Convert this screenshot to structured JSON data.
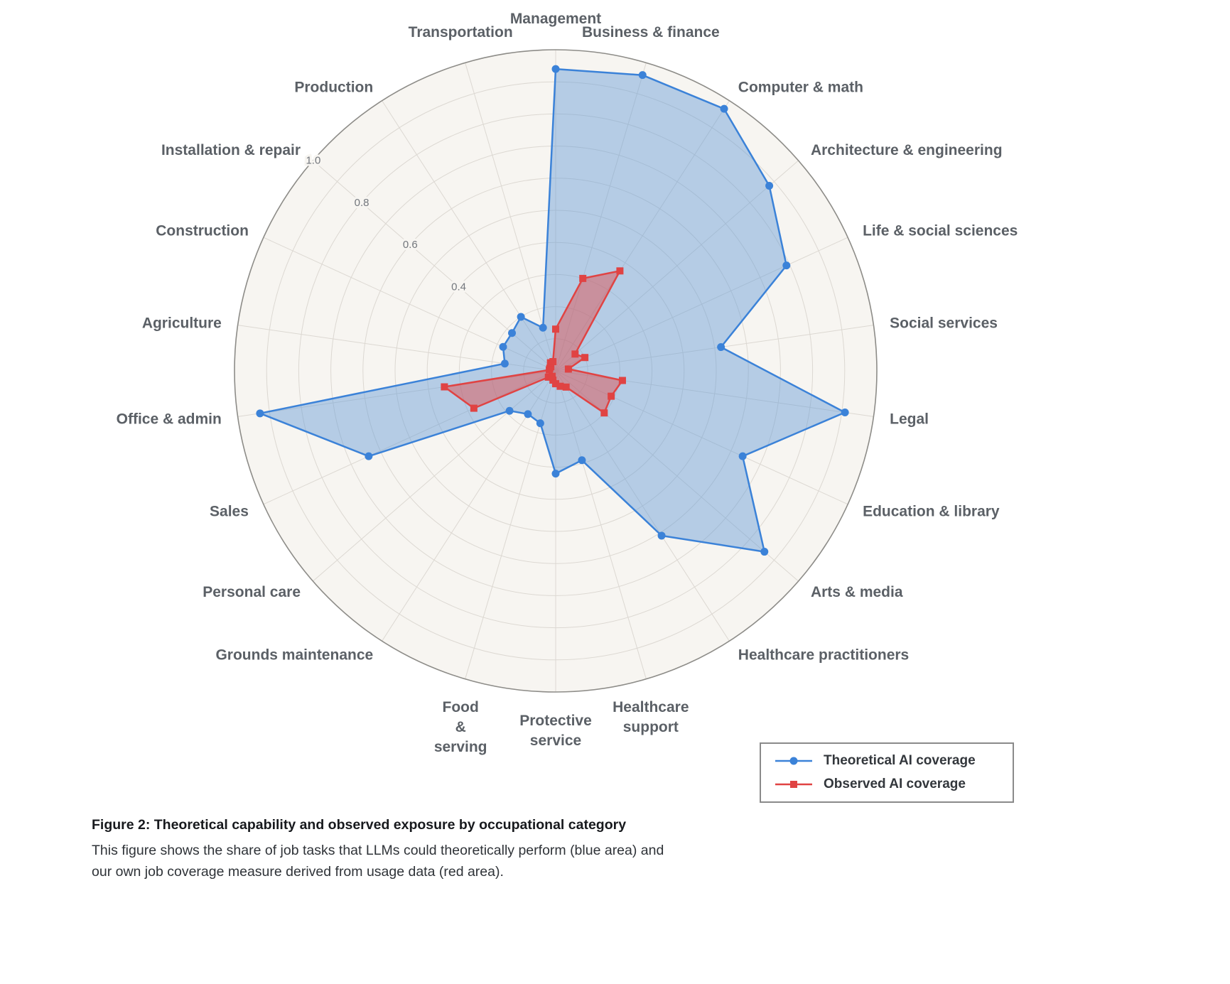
{
  "figure": {
    "caption_title": "Figure 2: Theoretical capability and observed exposure by occupational category",
    "caption_body": "This figure shows the share of job tasks that LLMs could theoretically perform (blue area) and our own job coverage measure derived from usage data (red area)."
  },
  "legend": {
    "items": [
      {
        "label": "Theoretical AI coverage",
        "color": "#3b82d8",
        "marker": "circle"
      },
      {
        "label": "Observed AI coverage",
        "color": "#e04343",
        "marker": "square"
      }
    ]
  },
  "chart_data": {
    "type": "radar",
    "title": "",
    "categories": [
      "Management",
      "Business & finance",
      "Computer & math",
      "Architecture & engineering",
      "Life & social sciences",
      "Social services",
      "Legal",
      "Education & library",
      "Arts & media",
      "Healthcare practitioners",
      "Healthcare support",
      "Protective service",
      "Food & serving",
      "Grounds maintenance",
      "Personal care",
      "Sales",
      "Office & admin",
      "Agriculture",
      "Construction",
      "Installation & repair",
      "Production",
      "Transportation"
    ],
    "series": [
      {
        "name": "Theoretical AI coverage",
        "color": "#3b82d8",
        "fill": "rgba(100,155,215,0.45)",
        "marker": "circle",
        "values": [
          0.94,
          0.96,
          0.97,
          0.88,
          0.79,
          0.52,
          0.91,
          0.64,
          0.86,
          0.61,
          0.29,
          0.32,
          0.17,
          0.16,
          0.19,
          0.64,
          0.93,
          0.16,
          0.18,
          0.18,
          0.2,
          0.14
        ]
      },
      {
        "name": "Observed AI coverage",
        "color": "#e04343",
        "fill": "rgba(224,80,80,0.48)",
        "marker": "square",
        "values": [
          0.13,
          0.3,
          0.37,
          0.08,
          0.1,
          0.04,
          0.21,
          0.19,
          0.2,
          0.06,
          0.05,
          0.04,
          0.03,
          0.02,
          0.03,
          0.28,
          0.35,
          0.02,
          0.02,
          0.02,
          0.03,
          0.03
        ]
      }
    ],
    "rlim": [
      0,
      1.0
    ],
    "grid_step": 0.1,
    "radial_ticks": [
      0.4,
      0.6,
      0.8,
      1.0
    ],
    "tick_angle_deg": 311,
    "legend_position": "bottom-right",
    "grid_on": true,
    "style": {
      "plot_background": "#f7f5f1",
      "grid_color": "#dcd8d2",
      "outline_color": "#8d8c88"
    }
  }
}
